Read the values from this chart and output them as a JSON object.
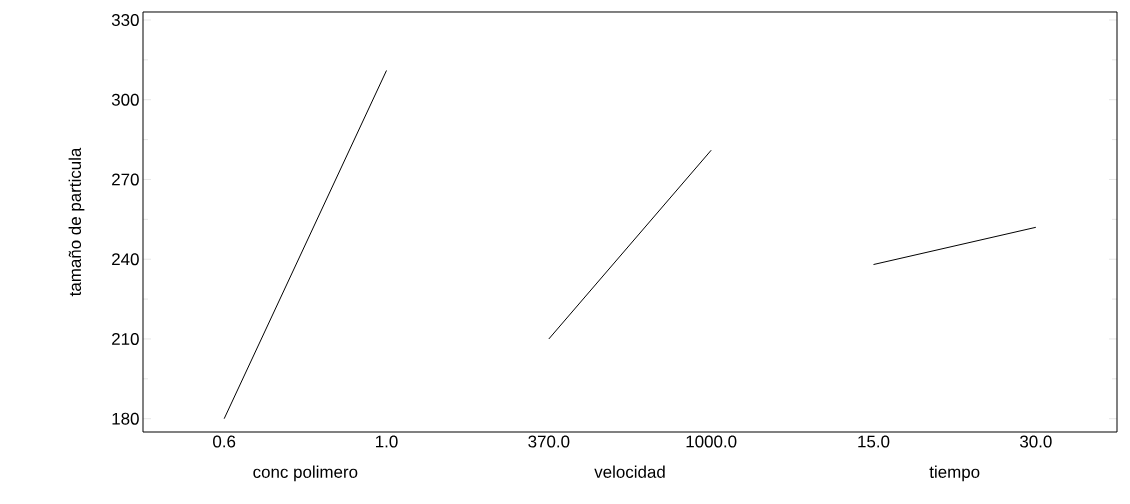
{
  "chart_data": {
    "type": "line",
    "ylabel": "tamaño de particula",
    "categories": [
      "0.6",
      "1.0",
      "370.0",
      "1000.0",
      "15.0",
      "30.0"
    ],
    "series": [
      {
        "color": "#000000",
        "values": [
          180,
          311,
          null,
          null,
          null,
          null
        ]
      },
      {
        "color": "#000000",
        "values": [
          null,
          null,
          210,
          281,
          null,
          null
        ]
      },
      {
        "color": "#000000",
        "values": [
          null,
          null,
          null,
          null,
          238,
          252
        ]
      }
    ],
    "ylim": [
      175,
      333
    ],
    "yticks": [
      180,
      210,
      240,
      270,
      300,
      330
    ],
    "annotations": [
      "conc polimero",
      "velocidad",
      "tiempo"
    ]
  }
}
